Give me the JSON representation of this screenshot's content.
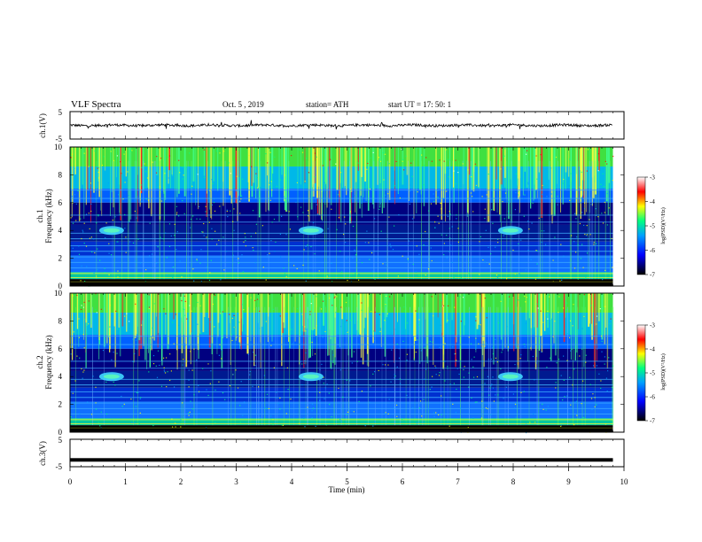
{
  "header": {
    "title": "VLF Spectra",
    "date": "Oct. 5 , 2019",
    "station": "station= ATH",
    "start": "start UT = 17: 50: 1"
  },
  "chart_data": [
    {
      "type": "line",
      "panel": "ch1-waveform",
      "ylabel": "ch.1(V)",
      "ylim": [
        -5,
        5
      ],
      "yticks": [
        "5",
        "-5"
      ],
      "xlim": [
        0,
        10
      ],
      "series": [
        {
          "values_note_mean": 0
        }
      ]
    },
    {
      "type": "heatmap",
      "panel": "ch1-spectrogram",
      "ylabel": "ch.1\nFrequency (kHz)",
      "ylabel_lines": [
        "ch.1",
        "Frequency (kHz)"
      ],
      "ylim": [
        0,
        10
      ],
      "yticks": [
        "0",
        "2",
        "4",
        "6",
        "8",
        "10"
      ],
      "xlim": [
        0,
        9.8
      ],
      "colorbar": {
        "label": "log(PSD)(V²/Hz)",
        "range": [
          -7,
          -3
        ],
        "ticks": [
          "-3",
          "-4",
          "-5",
          "-6",
          "-7"
        ]
      },
      "transmitter_bursts_min": [
        0.75,
        4.35,
        7.95
      ],
      "transmitter_burst_freq_khz": 4.0
    },
    {
      "type": "heatmap",
      "panel": "ch2-spectrogram",
      "ylabel": "ch.2\nFrequency (kHz)",
      "ylabel_lines": [
        "ch.2",
        "Frequency (kHz)"
      ],
      "ylim": [
        0,
        10
      ],
      "yticks": [
        "0",
        "2",
        "4",
        "6",
        "8",
        "10"
      ],
      "xlim": [
        0,
        9.8
      ],
      "colorbar": {
        "label": "log(PSD)(V²/Hz)",
        "range": [
          -7,
          -3
        ],
        "ticks": [
          "-3",
          "-4",
          "-5",
          "-6",
          "-7"
        ]
      },
      "transmitter_bursts_min": [
        0.75,
        4.35,
        7.95
      ],
      "transmitter_burst_freq_khz": 4.0
    },
    {
      "type": "line",
      "panel": "ch3-waveform",
      "ylabel": "ch.3(V)",
      "ylim": [
        -5,
        5
      ],
      "yticks": [
        "5",
        "-5"
      ],
      "xlim": [
        0,
        10
      ],
      "series": [
        {
          "constant_value": -2.5
        }
      ]
    }
  ],
  "xaxis": {
    "label": "Time (min)",
    "ticks": [
      "0",
      "1",
      "2",
      "3",
      "4",
      "5",
      "6",
      "7",
      "8",
      "9",
      "10"
    ]
  },
  "colors": {
    "colormap": [
      "#000000",
      "#0000ff",
      "#00a0ff",
      "#00ff80",
      "#ffff00",
      "#ff0000",
      "#ffffff"
    ]
  }
}
